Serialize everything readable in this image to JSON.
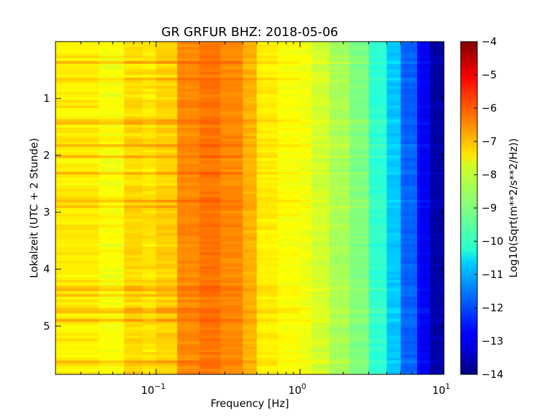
{
  "chart_data": {
    "type": "heatmap",
    "title": "GR GRFUR BHZ: 2018-05-06",
    "xlabel": "Frequency [Hz]",
    "ylabel": "Lokalzeit (UTC + 2 Stunde)",
    "x_scale": "log",
    "x_range": [
      0.02,
      10
    ],
    "x_ticks": [
      {
        "value": 0.1,
        "base": "10",
        "exp": "−1"
      },
      {
        "value": 1,
        "base": "10",
        "exp": "0"
      },
      {
        "value": 10,
        "base": "10",
        "exp": "1"
      }
    ],
    "y_range": [
      0,
      5.85
    ],
    "y_inverted": true,
    "y_ticks": [
      {
        "value": 1,
        "label": "1"
      },
      {
        "value": 2,
        "label": "2"
      },
      {
        "value": 3,
        "label": "3"
      },
      {
        "value": 4,
        "label": "4"
      },
      {
        "value": 5,
        "label": "5"
      }
    ],
    "frequency_bins": [
      0.02,
      0.04,
      0.06,
      0.08,
      0.1,
      0.14,
      0.2,
      0.28,
      0.4,
      0.5,
      0.7,
      1.0,
      1.2,
      1.6,
      2.2,
      3.0,
      4.0,
      5.0,
      6.5,
      8.0,
      10.0
    ],
    "bin_levels": [
      -7.6,
      -7.8,
      -7.4,
      -7.5,
      -7.3,
      -6.6,
      -6.4,
      -6.6,
      -7.0,
      -7.6,
      -7.8,
      -7.9,
      -8.2,
      -8.6,
      -9.0,
      -9.8,
      -10.8,
      -11.8,
      -12.8,
      -13.6
    ],
    "colorbar": {
      "label": "Log10(Sqrt(m**2/s**2/Hz))",
      "range": [
        -14,
        -4
      ],
      "ticks": [
        "−4",
        "−5",
        "−6",
        "−7",
        "−8",
        "−9",
        "−10",
        "−11",
        "−12",
        "−13",
        "−14"
      ],
      "colormap": "jet"
    }
  }
}
